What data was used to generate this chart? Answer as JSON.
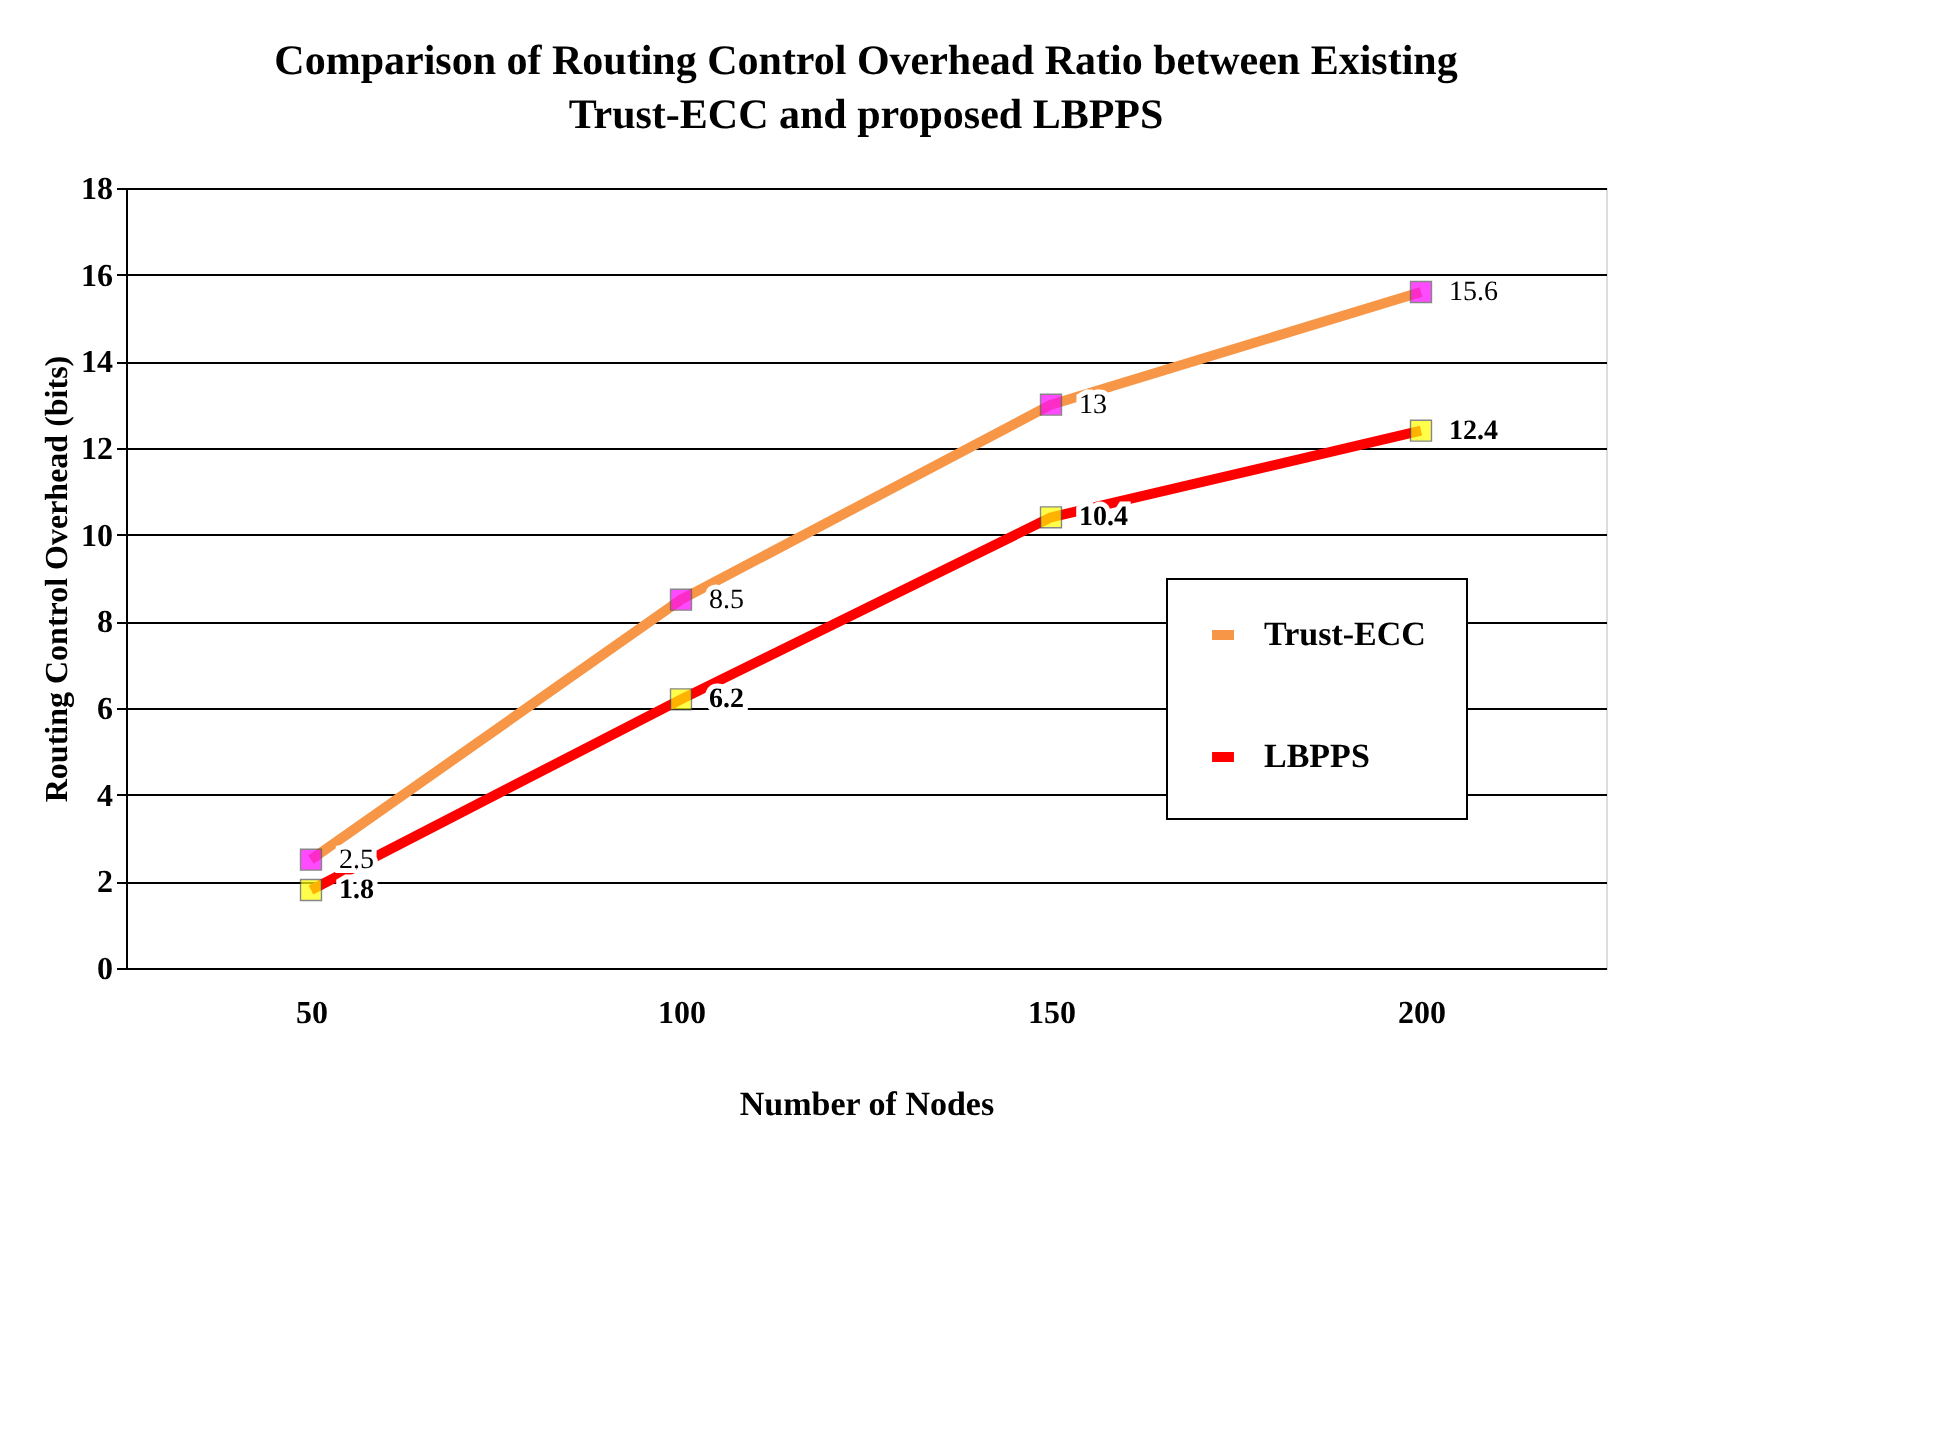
{
  "chart_data": {
    "type": "line",
    "title": "Comparison of Routing Control Overhead Ratio between Existing Trust-ECC and proposed LBPPS",
    "xlabel": "Number of Nodes",
    "ylabel": "Routing Control Overhead (bits)",
    "categories": [
      "50",
      "100",
      "150",
      "200"
    ],
    "series": [
      {
        "name": "Trust-ECC",
        "color": "#f79646",
        "values": [
          2.5,
          8.5,
          13,
          15.6
        ]
      },
      {
        "name": "LBPPS",
        "color": "#ff0000",
        "values": [
          1.8,
          6.2,
          10.4,
          12.4
        ]
      }
    ],
    "ylim": [
      0,
      18
    ],
    "yticks": [
      0,
      2,
      4,
      6,
      8,
      10,
      12,
      14,
      16,
      18
    ],
    "grid": "y",
    "legend": "right",
    "marker": "square",
    "data_labels": true
  }
}
